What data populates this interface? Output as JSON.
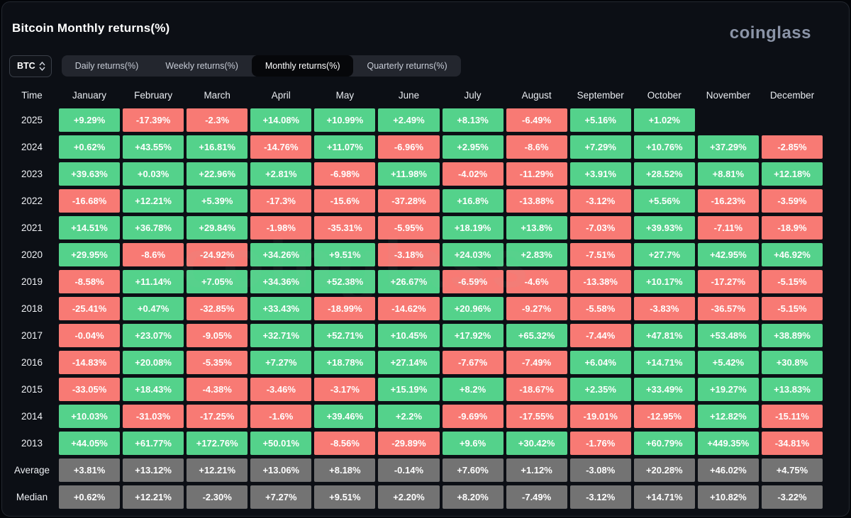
{
  "header": {
    "title": "Bitcoin Monthly returns(%)",
    "logo": "coinglass"
  },
  "controls": {
    "symbol_select": {
      "value": "BTC"
    },
    "tabs": [
      {
        "label": "Daily returns(%)",
        "active": false
      },
      {
        "label": "Weekly returns(%)",
        "active": false
      },
      {
        "label": "Monthly returns(%)",
        "active": true
      },
      {
        "label": "Quarterly returns(%)",
        "active": false
      }
    ]
  },
  "colors": {
    "positive": "#54d28b",
    "negative": "#f87a74",
    "summary": "#737373",
    "background": "#0c0f15"
  },
  "watermark": "coinglass",
  "table": {
    "corner_label": "Time",
    "columns": [
      "January",
      "February",
      "March",
      "April",
      "May",
      "June",
      "July",
      "August",
      "September",
      "October",
      "November",
      "December"
    ],
    "rows": [
      {
        "label": "2025",
        "type": "year",
        "values": [
          "+9.29%",
          "-17.39%",
          "-2.3%",
          "+14.08%",
          "+10.99%",
          "+2.49%",
          "+8.13%",
          "-6.49%",
          "+5.16%",
          "+1.02%",
          "",
          ""
        ]
      },
      {
        "label": "2024",
        "type": "year",
        "values": [
          "+0.62%",
          "+43.55%",
          "+16.81%",
          "-14.76%",
          "+11.07%",
          "-6.96%",
          "+2.95%",
          "-8.6%",
          "+7.29%",
          "+10.76%",
          "+37.29%",
          "-2.85%"
        ]
      },
      {
        "label": "2023",
        "type": "year",
        "values": [
          "+39.63%",
          "+0.03%",
          "+22.96%",
          "+2.81%",
          "-6.98%",
          "+11.98%",
          "-4.02%",
          "-11.29%",
          "+3.91%",
          "+28.52%",
          "+8.81%",
          "+12.18%"
        ]
      },
      {
        "label": "2022",
        "type": "year",
        "values": [
          "-16.68%",
          "+12.21%",
          "+5.39%",
          "-17.3%",
          "-15.6%",
          "-37.28%",
          "+16.8%",
          "-13.88%",
          "-3.12%",
          "+5.56%",
          "-16.23%",
          "-3.59%"
        ]
      },
      {
        "label": "2021",
        "type": "year",
        "values": [
          "+14.51%",
          "+36.78%",
          "+29.84%",
          "-1.98%",
          "-35.31%",
          "-5.95%",
          "+18.19%",
          "+13.8%",
          "-7.03%",
          "+39.93%",
          "-7.11%",
          "-18.9%"
        ]
      },
      {
        "label": "2020",
        "type": "year",
        "values": [
          "+29.95%",
          "-8.6%",
          "-24.92%",
          "+34.26%",
          "+9.51%",
          "-3.18%",
          "+24.03%",
          "+2.83%",
          "-7.51%",
          "+27.7%",
          "+42.95%",
          "+46.92%"
        ]
      },
      {
        "label": "2019",
        "type": "year",
        "values": [
          "-8.58%",
          "+11.14%",
          "+7.05%",
          "+34.36%",
          "+52.38%",
          "+26.67%",
          "-6.59%",
          "-4.6%",
          "-13.38%",
          "+10.17%",
          "-17.27%",
          "-5.15%"
        ]
      },
      {
        "label": "2018",
        "type": "year",
        "values": [
          "-25.41%",
          "+0.47%",
          "-32.85%",
          "+33.43%",
          "-18.99%",
          "-14.62%",
          "+20.96%",
          "-9.27%",
          "-5.58%",
          "-3.83%",
          "-36.57%",
          "-5.15%"
        ]
      },
      {
        "label": "2017",
        "type": "year",
        "values": [
          "-0.04%",
          "+23.07%",
          "-9.05%",
          "+32.71%",
          "+52.71%",
          "+10.45%",
          "+17.92%",
          "+65.32%",
          "-7.44%",
          "+47.81%",
          "+53.48%",
          "+38.89%"
        ]
      },
      {
        "label": "2016",
        "type": "year",
        "values": [
          "-14.83%",
          "+20.08%",
          "-5.35%",
          "+7.27%",
          "+18.78%",
          "+27.14%",
          "-7.67%",
          "-7.49%",
          "+6.04%",
          "+14.71%",
          "+5.42%",
          "+30.8%"
        ]
      },
      {
        "label": "2015",
        "type": "year",
        "values": [
          "-33.05%",
          "+18.43%",
          "-4.38%",
          "-3.46%",
          "-3.17%",
          "+15.19%",
          "+8.2%",
          "-18.67%",
          "+2.35%",
          "+33.49%",
          "+19.27%",
          "+13.83%"
        ]
      },
      {
        "label": "2014",
        "type": "year",
        "values": [
          "+10.03%",
          "-31.03%",
          "-17.25%",
          "-1.6%",
          "+39.46%",
          "+2.2%",
          "-9.69%",
          "-17.55%",
          "-19.01%",
          "-12.95%",
          "+12.82%",
          "-15.11%"
        ]
      },
      {
        "label": "2013",
        "type": "year",
        "values": [
          "+44.05%",
          "+61.77%",
          "+172.76%",
          "+50.01%",
          "-8.56%",
          "-29.89%",
          "+9.6%",
          "+30.42%",
          "-1.76%",
          "+60.79%",
          "+449.35%",
          "-34.81%"
        ]
      },
      {
        "label": "Average",
        "type": "summary",
        "values": [
          "+3.81%",
          "+13.12%",
          "+12.21%",
          "+13.06%",
          "+8.18%",
          "-0.14%",
          "+7.60%",
          "+1.12%",
          "-3.08%",
          "+20.28%",
          "+46.02%",
          "+4.75%"
        ]
      },
      {
        "label": "Median",
        "type": "summary",
        "values": [
          "+0.62%",
          "+12.21%",
          "-2.30%",
          "+7.27%",
          "+9.51%",
          "+2.20%",
          "+8.20%",
          "-7.49%",
          "-3.12%",
          "+14.71%",
          "+10.82%",
          "-3.22%"
        ]
      }
    ]
  }
}
